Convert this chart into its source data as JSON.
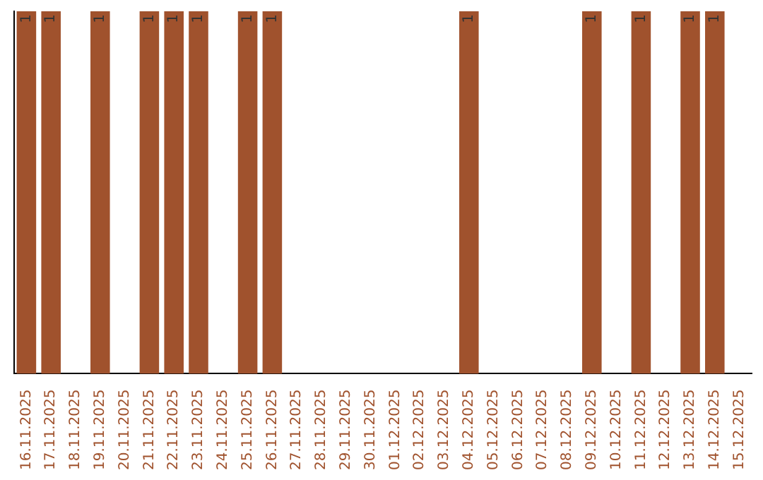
{
  "chart_data": {
    "type": "bar",
    "categories": [
      "16.11.2025",
      "17.11.2025",
      "18.11.2025",
      "19.11.2025",
      "20.11.2025",
      "21.11.2025",
      "22.11.2025",
      "23.11.2025",
      "24.11.2025",
      "25.11.2025",
      "26.11.2025",
      "27.11.2025",
      "28.11.2025",
      "29.11.2025",
      "30.11.2025",
      "01.12.2025",
      "02.12.2025",
      "03.12.2025",
      "04.12.2025",
      "05.12.2025",
      "06.12.2025",
      "07.12.2025",
      "08.12.2025",
      "09.12.2025",
      "10.12.2025",
      "11.12.2025",
      "12.12.2025",
      "13.12.2025",
      "14.12.2025",
      "15.12.2025"
    ],
    "values": [
      1,
      1,
      null,
      1,
      null,
      1,
      1,
      1,
      null,
      1,
      1,
      null,
      null,
      null,
      null,
      null,
      null,
      null,
      1,
      null,
      null,
      null,
      null,
      1,
      null,
      1,
      null,
      1,
      1,
      null
    ],
    "color": "#a0522d",
    "ylim": [
      0,
      1
    ],
    "tick_labels": "x",
    "grid": false,
    "legend": false,
    "data_labels": true
  }
}
